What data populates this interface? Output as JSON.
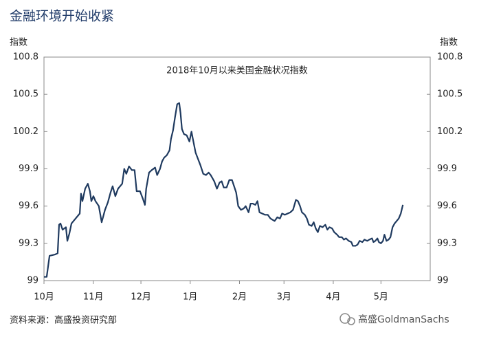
{
  "chart_data": {
    "type": "line",
    "title": "金融环境开始收紧",
    "subtitle": "2018年10月以来美国金融状况指数",
    "ylabel": "指数",
    "y2label": "指数",
    "source": "资料来源：高盛投资研究部",
    "watermark": "高盛GoldmanSachs",
    "xlim": [
      0,
      243
    ],
    "xticks": [
      {
        "value": 0,
        "label": "10月"
      },
      {
        "value": 31,
        "label": "11月"
      },
      {
        "value": 61,
        "label": "12月"
      },
      {
        "value": 92,
        "label": "1月"
      },
      {
        "value": 123,
        "label": "2月"
      },
      {
        "value": 151,
        "label": "3月"
      },
      {
        "value": 182,
        "label": "4月"
      },
      {
        "value": 212,
        "label": "5月"
      }
    ],
    "ylim": [
      99,
      100.8
    ],
    "yticks": [
      99,
      99.3,
      99.6,
      99.9,
      100.2,
      100.5,
      100.8
    ],
    "y2lim": [
      99,
      100.8
    ],
    "y2ticks": [
      99,
      99.3,
      99.6,
      99.9,
      100.2,
      100.5,
      100.8
    ],
    "grid": false,
    "x": [
      0,
      1.7,
      3.5,
      6.9,
      8.6,
      9.5,
      10.4,
      11.7,
      13.8,
      14.7,
      16,
      17.3,
      19.9,
      22.5,
      23.3,
      24.2,
      25.9,
      27.6,
      28.9,
      29.8,
      31.1,
      32.4,
      34.5,
      36.3,
      38.4,
      40.2,
      41.9,
      43.2,
      44.9,
      46.6,
      49.2,
      50.5,
      51.8,
      53.5,
      55.3,
      57,
      58.3,
      60.4,
      62.2,
      63.5,
      64.3,
      66.1,
      67.8,
      69.9,
      71.2,
      73,
      74.3,
      75.6,
      77.3,
      79,
      79.9,
      81.2,
      82.5,
      83.8,
      85.1,
      85.9,
      86.8,
      88.1,
      89.8,
      91.5,
      92.8,
      93.7,
      95.4,
      97.2,
      98.4,
      100.2,
      101.9,
      103.6,
      104.9,
      107.1,
      108.8,
      110.5,
      111.8,
      113.1,
      114.9,
      116.6,
      118.3,
      119.6,
      120.9,
      122.2,
      123.9,
      125.6,
      126.9,
      128.7,
      130,
      131.3,
      133,
      134.3,
      135.6,
      137.3,
      139,
      140.8,
      142.5,
      143.8,
      145.1,
      146.8,
      148.5,
      149.8,
      151.6,
      153.3,
      155,
      156.7,
      158.5,
      159.8,
      161.1,
      162.3,
      164.1,
      165.4,
      166.7,
      168.4,
      169.7,
      171,
      172.3,
      173.6,
      175.3,
      177,
      178.3,
      179.6,
      181.3,
      182.6,
      184.4,
      185.7,
      187.4,
      188.7,
      190,
      191.7,
      193.4,
      194.3,
      196,
      197.3,
      198.6,
      200.3,
      201.6,
      203.4,
      204.7,
      206.4,
      207.3,
      208.5,
      209.8,
      210.7,
      212,
      213.3,
      214.2,
      215.5,
      216.8,
      218,
      219.3,
      220.6,
      221.9,
      223.2,
      224.5,
      225.8
    ],
    "series": [
      {
        "name": "美国金融状况指数",
        "color": "#1f3a5f",
        "values": [
          99.03,
          99.03,
          99.2,
          99.21,
          99.22,
          99.45,
          99.46,
          99.41,
          99.43,
          99.32,
          99.38,
          99.46,
          99.5,
          99.54,
          99.7,
          99.64,
          99.74,
          99.78,
          99.72,
          99.64,
          99.68,
          99.64,
          99.6,
          99.47,
          99.57,
          99.63,
          99.71,
          99.76,
          99.68,
          99.74,
          99.78,
          99.9,
          99.86,
          99.92,
          99.89,
          99.89,
          99.72,
          99.72,
          99.66,
          99.61,
          99.74,
          99.87,
          99.89,
          99.91,
          99.85,
          99.9,
          99.96,
          99.99,
          100.01,
          100.05,
          100.14,
          100.21,
          100.32,
          100.42,
          100.43,
          100.35,
          100.22,
          100.18,
          100.17,
          100.12,
          100.2,
          100.14,
          100.03,
          99.97,
          99.93,
          99.86,
          99.85,
          99.87,
          99.85,
          99.8,
          99.74,
          99.79,
          99.8,
          99.75,
          99.75,
          99.81,
          99.81,
          99.76,
          99.71,
          99.6,
          99.57,
          99.58,
          99.6,
          99.55,
          99.62,
          99.62,
          99.61,
          99.64,
          99.55,
          99.54,
          99.53,
          99.53,
          99.5,
          99.49,
          99.48,
          99.51,
          99.5,
          99.54,
          99.53,
          99.54,
          99.55,
          99.57,
          99.65,
          99.64,
          99.6,
          99.55,
          99.53,
          99.5,
          99.45,
          99.44,
          99.47,
          99.42,
          99.39,
          99.44,
          99.43,
          99.45,
          99.41,
          99.43,
          99.42,
          99.39,
          99.37,
          99.35,
          99.35,
          99.33,
          99.34,
          99.32,
          99.31,
          99.28,
          99.28,
          99.29,
          99.32,
          99.31,
          99.33,
          99.32,
          99.33,
          99.34,
          99.31,
          99.32,
          99.34,
          99.31,
          99.3,
          99.32,
          99.37,
          99.32,
          99.33,
          99.35,
          99.43,
          99.46,
          99.48,
          99.5,
          99.54,
          99.61
        ]
      }
    ]
  }
}
